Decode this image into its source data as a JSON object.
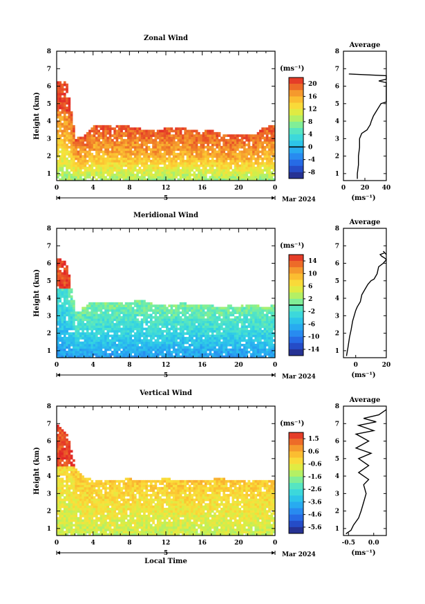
{
  "chart_data": [
    {
      "type": "heatmap",
      "title": "Zonal Wind",
      "ylabel": "Height (km)",
      "xticks": [
        "0",
        "4",
        "8",
        "12",
        "16",
        "20",
        "0"
      ],
      "yticks": [
        "1",
        "2",
        "3",
        "4",
        "5",
        "6",
        "7",
        "8"
      ],
      "xlim": [
        0,
        24
      ],
      "ylim": [
        0.6,
        8
      ],
      "date_label": "5",
      "date_suffix": "Mar 2024",
      "colorbar": {
        "unit": "(ms⁻¹)",
        "labels": [
          "20",
          "16",
          "12",
          "8",
          "4",
          "0",
          "-4",
          "-8"
        ],
        "range": [
          -10,
          22
        ],
        "zero_line": 0
      },
      "field": {
        "top": [
          6.3,
          6.2,
          3.0,
          3.2,
          3.8,
          3.8,
          3.7,
          3.8,
          3.7,
          3.6,
          3.5,
          3.5,
          3.6,
          3.7,
          3.6,
          3.5,
          3.4,
          3.5,
          3.3,
          3.2,
          3.3,
          3.2,
          3.3,
          3.7,
          3.8
        ],
        "surface": 8,
        "mid": 16,
        "upper": 20
      },
      "profile": {
        "title": "Average",
        "xticks": [
          "0",
          "20",
          "40"
        ],
        "xlim": [
          0,
          40
        ],
        "ylim": [
          0.6,
          8
        ],
        "xlabel": "(ms⁻¹)",
        "x": [
          13,
          13,
          14,
          14,
          15,
          15,
          17,
          22,
          25,
          26,
          28,
          32,
          35,
          40,
          40,
          40,
          40,
          40,
          33,
          40,
          40,
          5
        ],
        "y": [
          0.7,
          1.0,
          1.5,
          2.0,
          2.5,
          3.0,
          3.3,
          3.5,
          3.8,
          4.0,
          4.3,
          4.7,
          5.0,
          5.1,
          5.5,
          5.9,
          6.1,
          6.2,
          6.3,
          6.4,
          6.6,
          6.7
        ]
      }
    },
    {
      "type": "heatmap",
      "title": "Meridional Wind",
      "ylabel": "Height (km)",
      "xticks": [
        "0",
        "4",
        "8",
        "12",
        "16",
        "20",
        "0"
      ],
      "yticks": [
        "1",
        "2",
        "3",
        "4",
        "5",
        "6",
        "7",
        "8"
      ],
      "xlim": [
        0,
        24
      ],
      "ylim": [
        0.6,
        8
      ],
      "date_label": "5",
      "date_suffix": "Mar 2024",
      "colorbar": {
        "unit": "(ms⁻¹)",
        "labels": [
          "14",
          "10",
          "6",
          "2",
          "-2",
          "-6",
          "-10",
          "-14"
        ],
        "range": [
          -16,
          16
        ],
        "zero_line": 0
      },
      "field": {
        "top": [
          6.3,
          6.1,
          3.2,
          3.6,
          3.8,
          3.8,
          3.7,
          3.8,
          3.8,
          3.9,
          3.8,
          3.6,
          3.7,
          3.6,
          3.8,
          3.6,
          3.7,
          3.6,
          3.5,
          3.6,
          3.5,
          3.7,
          3.6,
          3.5,
          3.6
        ],
        "surface": -8,
        "mid": -3,
        "upper": 1
      },
      "profile": {
        "title": "Average",
        "xticks": [
          "0",
          "20"
        ],
        "xlim": [
          -8,
          20
        ],
        "ylim": [
          0.6,
          8
        ],
        "xlabel": "(ms⁻¹)",
        "x": [
          -6,
          -5,
          -4,
          -3,
          -2,
          -1,
          0,
          1,
          3,
          4,
          6,
          8,
          10,
          12,
          14,
          15,
          18,
          20,
          19,
          17,
          16,
          19,
          20,
          18
        ],
        "y": [
          0.7,
          1.2,
          1.8,
          2.2,
          2.7,
          3.0,
          3.3,
          3.5,
          3.8,
          4.2,
          4.5,
          4.8,
          5.0,
          5.1,
          5.4,
          5.8,
          6.0,
          6.2,
          6.3,
          6.4,
          6.5,
          6.6,
          6.5,
          6.7
        ]
      }
    },
    {
      "type": "heatmap",
      "title": "Vertical Wind",
      "ylabel": "Height (km)",
      "xlabel": "Local Time",
      "xticks": [
        "0",
        "4",
        "8",
        "12",
        "16",
        "20",
        "0"
      ],
      "yticks": [
        "1",
        "2",
        "3",
        "4",
        "5",
        "6",
        "7",
        "8"
      ],
      "xlim": [
        0,
        24
      ],
      "ylim": [
        0.6,
        8
      ],
      "date_label": "5",
      "date_suffix": "Mar 2024",
      "colorbar": {
        "unit": "(ms⁻¹)",
        "labels": [
          "1.5",
          "0.6",
          "-0.6",
          "-1.6",
          "-2.6",
          "-3.6",
          "-4.6",
          "-5.6"
        ],
        "range": [
          -6.2,
          2.2
        ],
        "zero_line": null
      },
      "field": {
        "top": [
          6.9,
          6.5,
          4.5,
          3.9,
          3.8,
          3.7,
          3.8,
          3.8,
          3.9,
          3.7,
          3.8,
          3.8,
          3.9,
          3.8,
          3.8,
          3.8,
          3.7,
          3.8,
          3.9,
          3.8,
          3.8,
          3.7,
          3.8,
          3.8,
          3.8
        ],
        "surface": -1.0,
        "mid": -0.4,
        "upper": 0.2
      },
      "profile": {
        "title": "Average",
        "xticks": [
          "-0.5",
          "0.0"
        ],
        "xlim": [
          -0.6,
          0.25
        ],
        "ylim": [
          0.6,
          8
        ],
        "xlabel": "(ms⁻¹)",
        "x": [
          -0.55,
          -0.45,
          -0.4,
          -0.3,
          -0.25,
          -0.2,
          -0.15,
          -0.2,
          -0.1,
          -0.3,
          -0.1,
          -0.3,
          -0.05,
          -0.35,
          -0.1,
          -0.35,
          0.0,
          -0.3,
          0.05,
          -0.2,
          0.1,
          0.2,
          0.25
        ],
        "y": [
          0.7,
          0.9,
          1.2,
          1.6,
          2.0,
          2.5,
          3.0,
          3.5,
          3.8,
          4.2,
          4.6,
          5.0,
          5.3,
          5.6,
          6.0,
          6.4,
          6.6,
          6.9,
          7.1,
          7.3,
          7.5,
          7.7,
          7.8
        ]
      }
    }
  ]
}
